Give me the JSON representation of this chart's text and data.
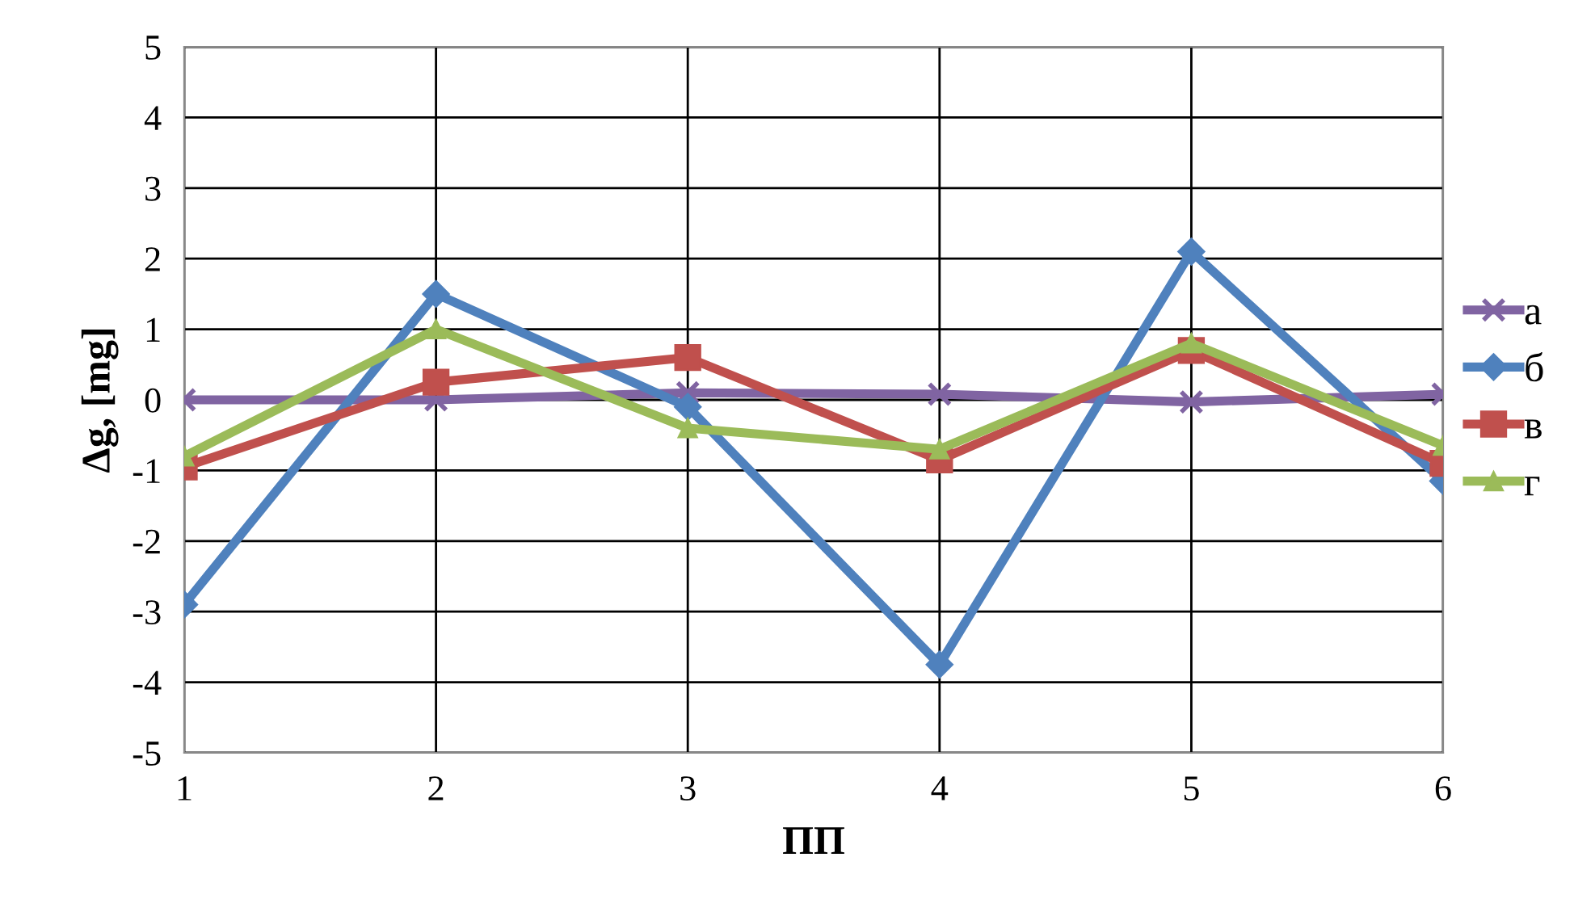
{
  "chart_data": {
    "type": "line",
    "xlabel": "ПП",
    "ylabel": "Δg, [mg]",
    "x": [
      1,
      2,
      3,
      4,
      5,
      6
    ],
    "xlim": [
      1,
      6
    ],
    "xticks": [
      1,
      2,
      3,
      4,
      5,
      6
    ],
    "ylim": [
      -5,
      5
    ],
    "yticks": [
      -5,
      -4,
      -3,
      -2,
      -1,
      0,
      1,
      2,
      3,
      4,
      5
    ],
    "grid": true,
    "legend": "right",
    "series": [
      {
        "name": "а",
        "color": "#8064a2",
        "marker": "cross",
        "values": [
          0,
          0,
          0.1,
          0.08,
          -0.03,
          0.08
        ]
      },
      {
        "name": "б",
        "color": "#4f81bd",
        "marker": "diamond",
        "values": [
          -2.9,
          1.5,
          -0.1,
          -3.75,
          2.1,
          -1.15
        ]
      },
      {
        "name": "в",
        "color": "#c0504d",
        "marker": "square",
        "values": [
          -0.95,
          0.25,
          0.6,
          -0.85,
          0.7,
          -0.9
        ]
      },
      {
        "name": "г",
        "color": "#9bbb59",
        "marker": "triangle",
        "values": [
          -0.8,
          1.0,
          -0.4,
          -0.7,
          0.8,
          -0.65
        ]
      }
    ]
  }
}
